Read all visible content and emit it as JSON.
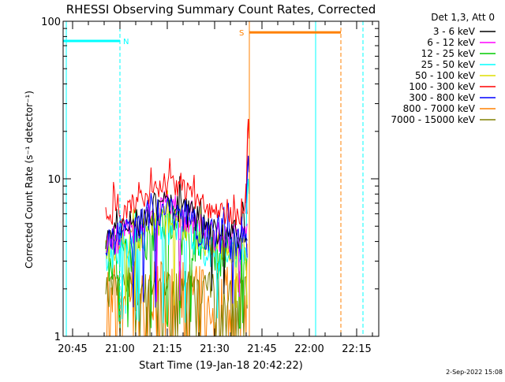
{
  "chart_data": {
    "type": "line",
    "title": "RHESSI Observing Summary Count Rates, Corrected",
    "xlabel": "Start Time (19-Jan-18 20:42:22)",
    "ylabel": "Corrected Count Rate (s⁻¹ detector⁻¹)",
    "y_scale": "log",
    "ylim": [
      1,
      100
    ],
    "y_ticks": [
      "1",
      "10",
      "100"
    ],
    "xlim": [
      "20:42",
      "22:22"
    ],
    "x_ticks": [
      "20:45",
      "21:00",
      "21:15",
      "21:30",
      "21:45",
      "22:00",
      "22:15"
    ],
    "legend_title": "Det 1,3, Att 0",
    "legend_position": "right",
    "series": [
      {
        "name": "3 - 6 keV",
        "color": "#000000"
      },
      {
        "name": "6 - 12 keV",
        "color": "#ff00ff"
      },
      {
        "name": "12 - 25 keV",
        "color": "#00cc00"
      },
      {
        "name": "25 - 50 keV",
        "color": "#00ffff"
      },
      {
        "name": "50 - 100 keV",
        "color": "#dddd00"
      },
      {
        "name": "100 - 300 keV",
        "color": "#ff0000"
      },
      {
        "name": "300 - 800 keV",
        "color": "#0000ff"
      },
      {
        "name": "800 - 7000 keV",
        "color": "#ff8000"
      },
      {
        "name": "7000 - 15000 keV",
        "color": "#808000"
      }
    ],
    "bands": [
      {
        "label": "N",
        "color": "#00ffff",
        "level": 75,
        "from": "20:42",
        "to": "21:00"
      },
      {
        "label": "S",
        "color": "#ff8000",
        "level": 85,
        "from": "21:41",
        "to": "22:10"
      }
    ],
    "markers": [
      {
        "time": "20:43",
        "color": "#00ffff",
        "style": "solid"
      },
      {
        "time": "21:00",
        "color": "#00ffff",
        "style": "dashed"
      },
      {
        "time": "21:41",
        "color": "#ff8000",
        "style": "solid"
      },
      {
        "time": "22:02",
        "color": "#00ffff",
        "style": "solid"
      },
      {
        "time": "22:10",
        "color": "#ff8000",
        "style": "dashed"
      },
      {
        "time": "22:17",
        "color": "#00ffff",
        "style": "dashed"
      }
    ],
    "footer": "2-Sep-2022 15:08"
  }
}
